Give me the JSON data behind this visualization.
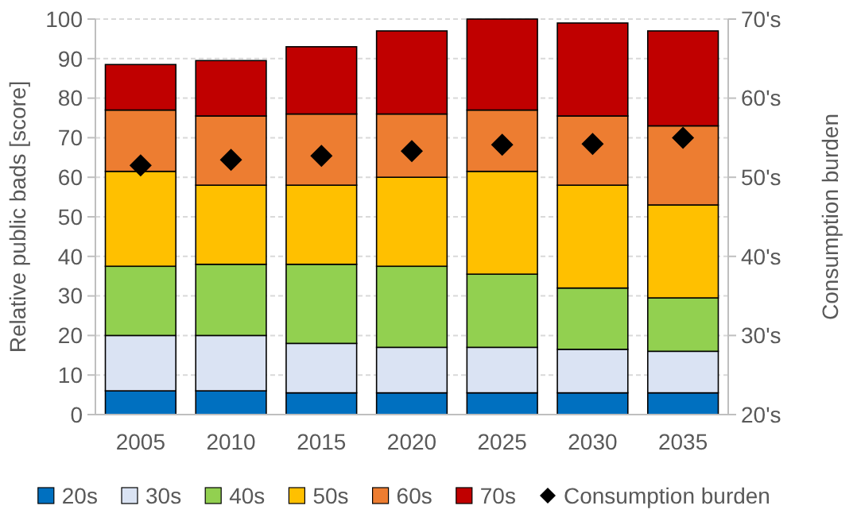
{
  "chart_data": {
    "type": "bar",
    "stacked": true,
    "ylabel": "Relative public bads [score]",
    "y2label": "Consumption burden",
    "categories": [
      "2005",
      "2010",
      "2015",
      "2020",
      "2025",
      "2030",
      "2035"
    ],
    "series": [
      {
        "name": "20s",
        "color": "#0070c0",
        "values": [
          6,
          6,
          5.5,
          5.5,
          5.5,
          5.5,
          5.5
        ]
      },
      {
        "name": "30s",
        "color": "#dae3f3",
        "values": [
          14,
          14,
          12.5,
          11.5,
          11.5,
          11,
          10.5
        ]
      },
      {
        "name": "40s",
        "color": "#92d050",
        "values": [
          17.5,
          18,
          20,
          20.5,
          18.5,
          15.5,
          13.5
        ]
      },
      {
        "name": "50s",
        "color": "#ffc000",
        "values": [
          24,
          20,
          20,
          22.5,
          26,
          26,
          23.5
        ]
      },
      {
        "name": "60s",
        "color": "#ed7d31",
        "values": [
          15.5,
          17.5,
          18,
          16,
          15.5,
          17.5,
          20
        ]
      },
      {
        "name": "70s",
        "color": "#c00000",
        "values": [
          11.5,
          14,
          17,
          21,
          23,
          23.5,
          24
        ]
      },
      {
        "name": "Consumption burden",
        "type": "scatter",
        "axis": "y2",
        "marker": "diamond",
        "color": "#000000",
        "values": [
          51.5,
          52.2,
          52.7,
          53.3,
          54.1,
          54.2,
          55
        ]
      }
    ],
    "ylim": [
      0,
      100
    ],
    "yticks": [
      0,
      10,
      20,
      30,
      40,
      50,
      60,
      70,
      80,
      90,
      100
    ],
    "y2lim": [
      20,
      70
    ],
    "y2ticks": [
      {
        "value": 20,
        "label": "20's"
      },
      {
        "value": 30,
        "label": "30's"
      },
      {
        "value": 40,
        "label": "40's"
      },
      {
        "value": 50,
        "label": "50's"
      },
      {
        "value": 60,
        "label": "60's"
      },
      {
        "value": 70,
        "label": "70's"
      }
    ],
    "grid": "y",
    "legend": "bottom"
  }
}
